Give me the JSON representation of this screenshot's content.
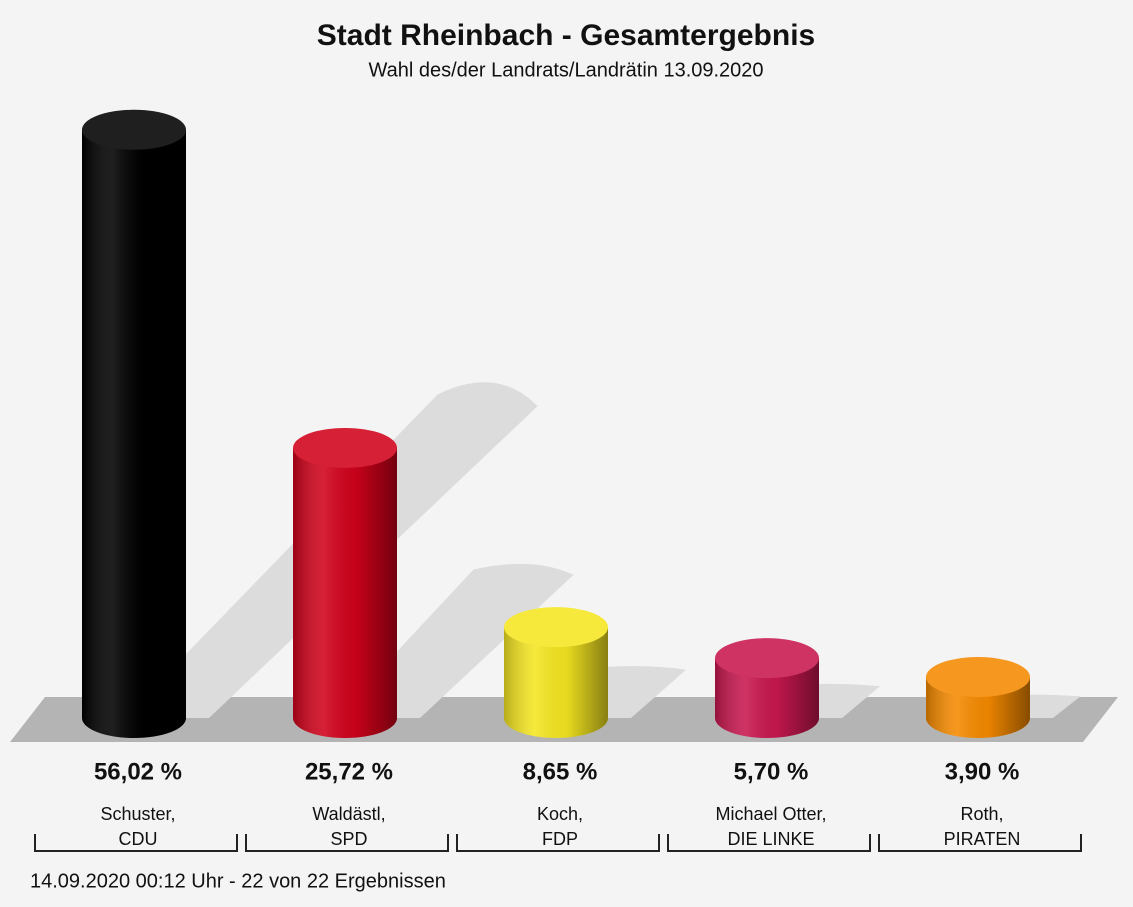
{
  "chart_data": {
    "type": "bar",
    "title": "Stadt Rheinbach - Gesamtergebnis",
    "subtitle": "Wahl des/der Landrats/Landrätin 13.09.2020",
    "categories": [
      "Schuster,",
      "Waldästl,",
      "Koch,",
      "Michael Otter,",
      "Roth,"
    ],
    "parties": [
      "CDU",
      "SPD",
      "FDP",
      "DIE LINKE",
      "PIRATEN"
    ],
    "values": [
      56.02,
      25.72,
      8.65,
      5.7,
      3.9
    ],
    "value_labels": [
      "56,02 %",
      "25,72 %",
      "8,65 %",
      "5,70 %",
      "3,90 %"
    ],
    "colors": [
      "#000000",
      "#d0021b",
      "#f5e621",
      "#c8174f",
      "#f58a00"
    ],
    "footer": "14.09.2020 00:12 Uhr - 22 von 22 Ergebnissen"
  }
}
